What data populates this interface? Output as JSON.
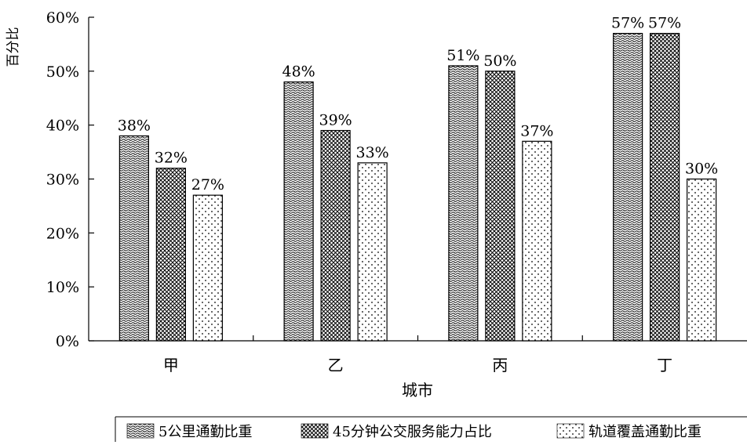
{
  "chart_data": {
    "type": "bar",
    "ylabel": "百分比",
    "xlabel": "城市",
    "ylim": [
      0,
      60
    ],
    "yticks": [
      0,
      10,
      20,
      30,
      40,
      50,
      60
    ],
    "ytick_labels": [
      "0%",
      "10%",
      "20%",
      "30%",
      "40%",
      "50%",
      "60%"
    ],
    "categories": [
      "甲",
      "乙",
      "丙",
      "丁"
    ],
    "series": [
      {
        "name": "5公里通勤比重",
        "values": [
          38,
          48,
          51,
          57
        ],
        "labels": [
          "38%",
          "48%",
          "51%",
          "57%"
        ],
        "pattern": "dense-wave"
      },
      {
        "name": "45分钟公交服务能力占比",
        "values": [
          32,
          39,
          50,
          57
        ],
        "labels": [
          "32%",
          "39%",
          "50%",
          "57%"
        ],
        "pattern": "crosshatch"
      },
      {
        "name": "轨道覆盖通勤比重",
        "values": [
          27,
          33,
          37,
          30
        ],
        "labels": [
          "27%",
          "33%",
          "37%",
          "30%"
        ],
        "pattern": "sparse-dots"
      }
    ],
    "legend_position": "bottom",
    "grid": false
  }
}
